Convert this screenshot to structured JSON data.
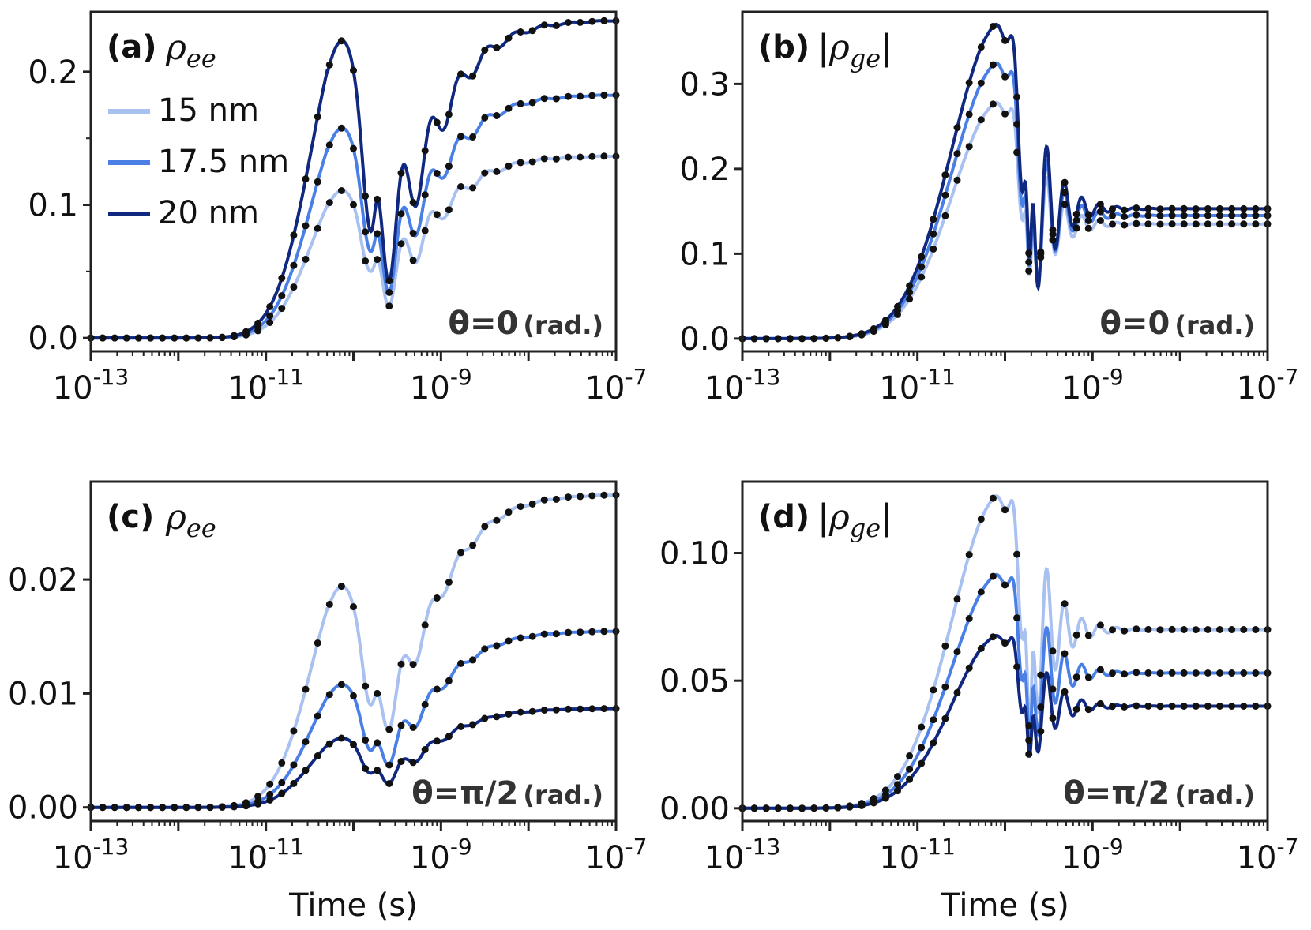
{
  "colors": {
    "15 nm": "#a9c1f0",
    "17.5 nm": "#4a80e6",
    "20 nm": "#10287f",
    "markers": "#111111"
  },
  "legend": [
    "15 nm",
    "17.5 nm",
    "20 nm"
  ],
  "chart_data": [
    {
      "type": "line",
      "panel": "(a)",
      "symbol": "ρ",
      "symbol_sub": "ee",
      "symbol_abs": false,
      "annotation_pre": "θ=0",
      "annotation_post": "(rad.)",
      "xlabel": "",
      "xscale": "log",
      "xlim": [
        1e-13,
        1e-07
      ],
      "ylim": [
        -0.01,
        0.245
      ],
      "yticks": [
        0.0,
        0.1,
        0.2
      ],
      "ytick_labels": [
        "0.0",
        "0.1",
        "0.2"
      ],
      "yminor": [
        0.05,
        0.15
      ],
      "xtick_labels": [
        {
          "base": "10",
          "exp": "-13"
        },
        {
          "base": "10",
          "exp": "-11"
        },
        {
          "base": "10",
          "exp": "-9"
        },
        {
          "base": "10",
          "exp": "-7"
        }
      ],
      "series": [
        {
          "name": "15 nm",
          "steady": 0.137,
          "peak1": 0.113,
          "dip1": 0.05,
          "osc": 0.04
        },
        {
          "name": "17.5 nm",
          "steady": 0.183,
          "peak1": 0.161,
          "dip1": 0.065,
          "osc": 0.05
        },
        {
          "name": "20 nm",
          "steady": 0.239,
          "peak1": 0.228,
          "dip1": 0.08,
          "osc": 0.07
        }
      ],
      "shape": "rho_ee"
    },
    {
      "type": "line",
      "panel": "(b)",
      "symbol": "ρ",
      "symbol_sub": "ge",
      "symbol_abs": true,
      "annotation_pre": "θ=0",
      "annotation_post": "(rad.)",
      "xlabel": "",
      "xscale": "log",
      "xlim": [
        1e-13,
        1e-07
      ],
      "ylim": [
        -0.015,
        0.385
      ],
      "yticks": [
        0.0,
        0.1,
        0.2,
        0.3
      ],
      "ytick_labels": [
        "0.0",
        "0.1",
        "0.2",
        "0.3"
      ],
      "yminor": [],
      "xtick_labels": [
        {
          "base": "10",
          "exp": "-13"
        },
        {
          "base": "10",
          "exp": "-11"
        },
        {
          "base": "10",
          "exp": "-9"
        },
        {
          "base": "10",
          "exp": "-7"
        }
      ],
      "series": [
        {
          "name": "15 nm",
          "steady": 0.135,
          "peak1": 0.28,
          "dip1": 0.075
        },
        {
          "name": "17.5 nm",
          "steady": 0.145,
          "peak1": 0.327,
          "dip1": 0.085
        },
        {
          "name": "20 nm",
          "steady": 0.153,
          "peak1": 0.373,
          "dip1": 0.095
        }
      ],
      "shape": "rho_ge"
    },
    {
      "type": "line",
      "panel": "(c)",
      "symbol": "ρ",
      "symbol_sub": "ee",
      "symbol_abs": false,
      "annotation_pre": "θ=π/2",
      "annotation_post": "(rad.)",
      "xlabel": "Time (s)",
      "xscale": "log",
      "xlim": [
        1e-13,
        1e-07
      ],
      "ylim": [
        -0.0012,
        0.0286
      ],
      "yticks": [
        0.0,
        0.01,
        0.02
      ],
      "ytick_labels": [
        "0.00",
        "0.01",
        "0.02"
      ],
      "yminor": [],
      "xtick_labels": [
        {
          "base": "10",
          "exp": "-13"
        },
        {
          "base": "10",
          "exp": "-11"
        },
        {
          "base": "10",
          "exp": "-9"
        },
        {
          "base": "10",
          "exp": "-7"
        }
      ],
      "series": [
        {
          "name": "15 nm",
          "steady": 0.0275,
          "peak1": 0.0198,
          "dip1": 0.009,
          "osc": 0.004
        },
        {
          "name": "17.5 nm",
          "steady": 0.0155,
          "peak1": 0.011,
          "dip1": 0.005,
          "osc": 0.0025
        },
        {
          "name": "20 nm",
          "steady": 0.0087,
          "peak1": 0.0062,
          "dip1": 0.003,
          "osc": 0.0014
        }
      ],
      "shape": "rho_ee"
    },
    {
      "type": "line",
      "panel": "(d)",
      "symbol": "ρ",
      "symbol_sub": "ge",
      "symbol_abs": true,
      "annotation_pre": "θ=π/2",
      "annotation_post": "(rad.)",
      "xlabel": "Time (s)",
      "xscale": "log",
      "xlim": [
        1e-13,
        1e-07
      ],
      "ylim": [
        -0.005,
        0.128
      ],
      "yticks": [
        0.0,
        0.05,
        0.1
      ],
      "ytick_labels": [
        "0.00",
        "0.05",
        "0.10"
      ],
      "yminor": [],
      "xtick_labels": [
        {
          "base": "10",
          "exp": "-13"
        },
        {
          "base": "10",
          "exp": "-11"
        },
        {
          "base": "10",
          "exp": "-9"
        },
        {
          "base": "10",
          "exp": "-7"
        }
      ],
      "series": [
        {
          "name": "15 nm",
          "steady": 0.07,
          "peak1": 0.123,
          "dip1": 0.03
        },
        {
          "name": "17.5 nm",
          "steady": 0.053,
          "peak1": 0.092,
          "dip1": 0.025
        },
        {
          "name": "20 nm",
          "steady": 0.04,
          "peak1": 0.068,
          "dip1": 0.02
        }
      ],
      "shape": "rho_ge"
    }
  ]
}
